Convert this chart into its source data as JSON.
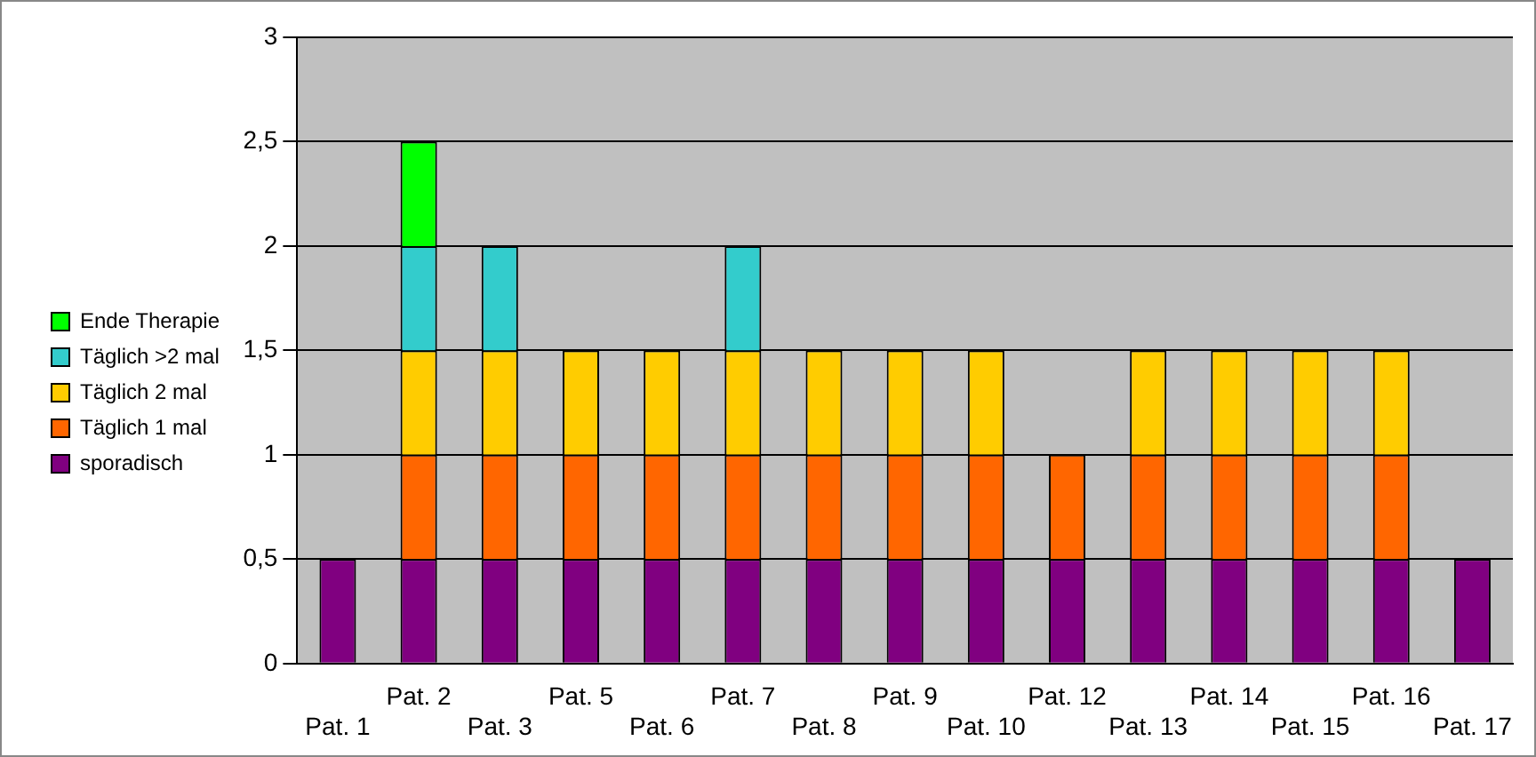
{
  "chart_data": {
    "type": "bar",
    "stacked": true,
    "grid": "y",
    "legend": "left",
    "categories": [
      "Pat. 1",
      "Pat. 2",
      "Pat. 3",
      "Pat. 5",
      "Pat. 6",
      "Pat. 7",
      "Pat. 8",
      "Pat. 9",
      "Pat. 10",
      "Pat. 12",
      "Pat. 13",
      "Pat. 14",
      "Pat. 15",
      "Pat. 16",
      "Pat. 17"
    ],
    "ylim": [
      0,
      3
    ],
    "yticks": [
      0,
      {
        "value": 0.5,
        "label": "0,5"
      },
      1,
      {
        "value": 1.5,
        "label": "1,5"
      },
      2,
      {
        "value": 2.5,
        "label": "2,5"
      },
      3
    ],
    "series": [
      {
        "name": "sporadisch",
        "color": "#800080",
        "values": [
          0.5,
          0.5,
          0.5,
          0.5,
          0.5,
          0.5,
          0.5,
          0.5,
          0.5,
          0.5,
          0.5,
          0.5,
          0.5,
          0.5,
          0.5
        ]
      },
      {
        "name": "Täglich 1 mal",
        "color": "#ff6600",
        "values": [
          0,
          0.5,
          0.5,
          0.5,
          0.5,
          0.5,
          0.5,
          0.5,
          0.5,
          0.5,
          0.5,
          0.5,
          0.5,
          0.5,
          0
        ]
      },
      {
        "name": "Täglich 2 mal",
        "color": "#ffcc00",
        "values": [
          0,
          0.5,
          0.5,
          0.5,
          0.5,
          0.5,
          0.5,
          0.5,
          0.5,
          0,
          0.5,
          0.5,
          0.5,
          0.5,
          0
        ]
      },
      {
        "name": "Täglich >2 mal",
        "color": "#33cccc",
        "values": [
          0,
          0.5,
          0.5,
          0,
          0,
          0.5,
          0,
          0,
          0,
          0,
          0,
          0,
          0,
          0,
          0
        ]
      },
      {
        "name": "Ende Therapie",
        "color": "#00ff00",
        "values": [
          0,
          0.5,
          0,
          0,
          0,
          0,
          0,
          0,
          0,
          0,
          0,
          0,
          0,
          0,
          0
        ]
      }
    ]
  }
}
